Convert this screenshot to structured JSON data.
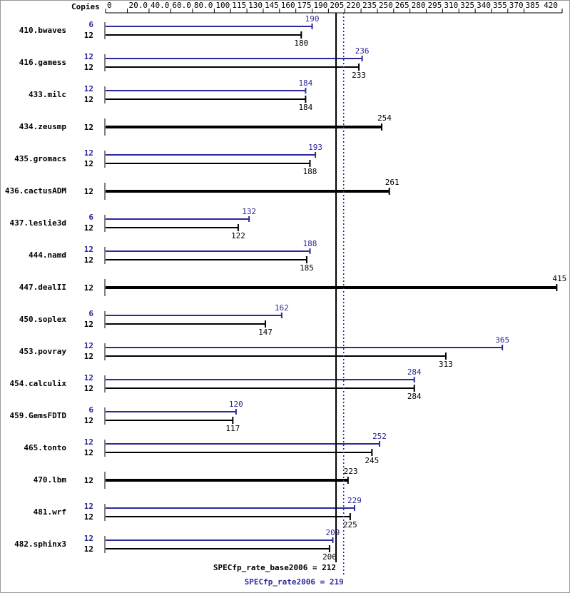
{
  "chart_data": {
    "type": "bar",
    "copies_header": "Copies",
    "categories": [
      "410.bwaves",
      "416.gamess",
      "433.milc",
      "434.zeusmp",
      "435.gromacs",
      "436.cactusADM",
      "437.leslie3d",
      "444.namd",
      "447.dealII",
      "450.soplex",
      "453.povray",
      "454.calculix",
      "459.GemsFDTD",
      "465.tonto",
      "470.lbm",
      "481.wrf",
      "482.sphinx3"
    ],
    "series": [
      {
        "color": "#2a2a9a",
        "copies": [
          6,
          12,
          12,
          null,
          12,
          null,
          6,
          12,
          null,
          6,
          12,
          12,
          6,
          12,
          null,
          12,
          12
        ],
        "values": [
          190,
          236,
          184,
          null,
          193,
          null,
          132,
          188,
          null,
          162,
          365,
          284,
          120,
          252,
          null,
          229,
          209
        ]
      },
      {
        "color": "#000000",
        "copies": [
          12,
          12,
          12,
          12,
          12,
          12,
          12,
          12,
          12,
          12,
          12,
          12,
          12,
          12,
          12,
          12,
          12
        ],
        "values": [
          180,
          233,
          184,
          254,
          188,
          261,
          122,
          185,
          415,
          147,
          313,
          284,
          117,
          245,
          223,
          225,
          206
        ]
      }
    ],
    "xlim": [
      0,
      420
    ],
    "xticks": [
      0,
      {
        "value": 20,
        "label": "20.0"
      },
      {
        "value": 40,
        "label": "40.0"
      },
      {
        "value": 60,
        "label": "60.0"
      },
      {
        "value": 80,
        "label": "80.0"
      },
      100,
      115,
      130,
      145,
      160,
      175,
      190,
      205,
      220,
      235,
      250,
      265,
      280,
      295,
      310,
      325,
      340,
      355,
      370,
      385,
      420
    ],
    "reference_lines": [
      {
        "label": "SPECfp_rate_base2006 = 212",
        "value": 212,
        "color": "#000000"
      },
      {
        "label": "SPECfp_rate2006 = 219",
        "value": 219,
        "color": "#2a2a9a"
      }
    ]
  }
}
